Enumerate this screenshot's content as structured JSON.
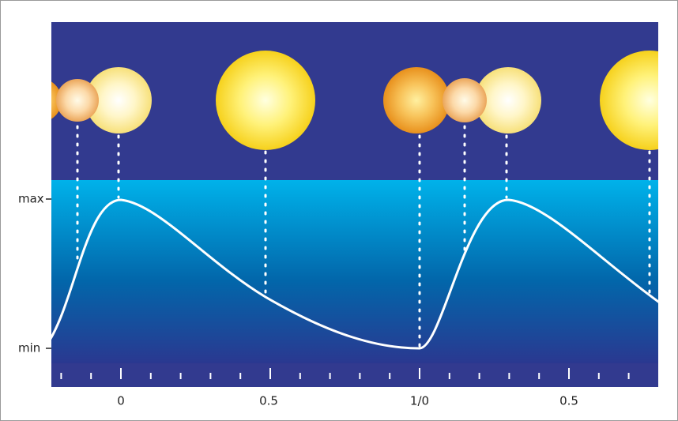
{
  "axis": {
    "y_labels": [
      "max",
      "min"
    ],
    "x_labels": [
      "0",
      "0.5",
      "1/0",
      "0.5"
    ]
  }
}
